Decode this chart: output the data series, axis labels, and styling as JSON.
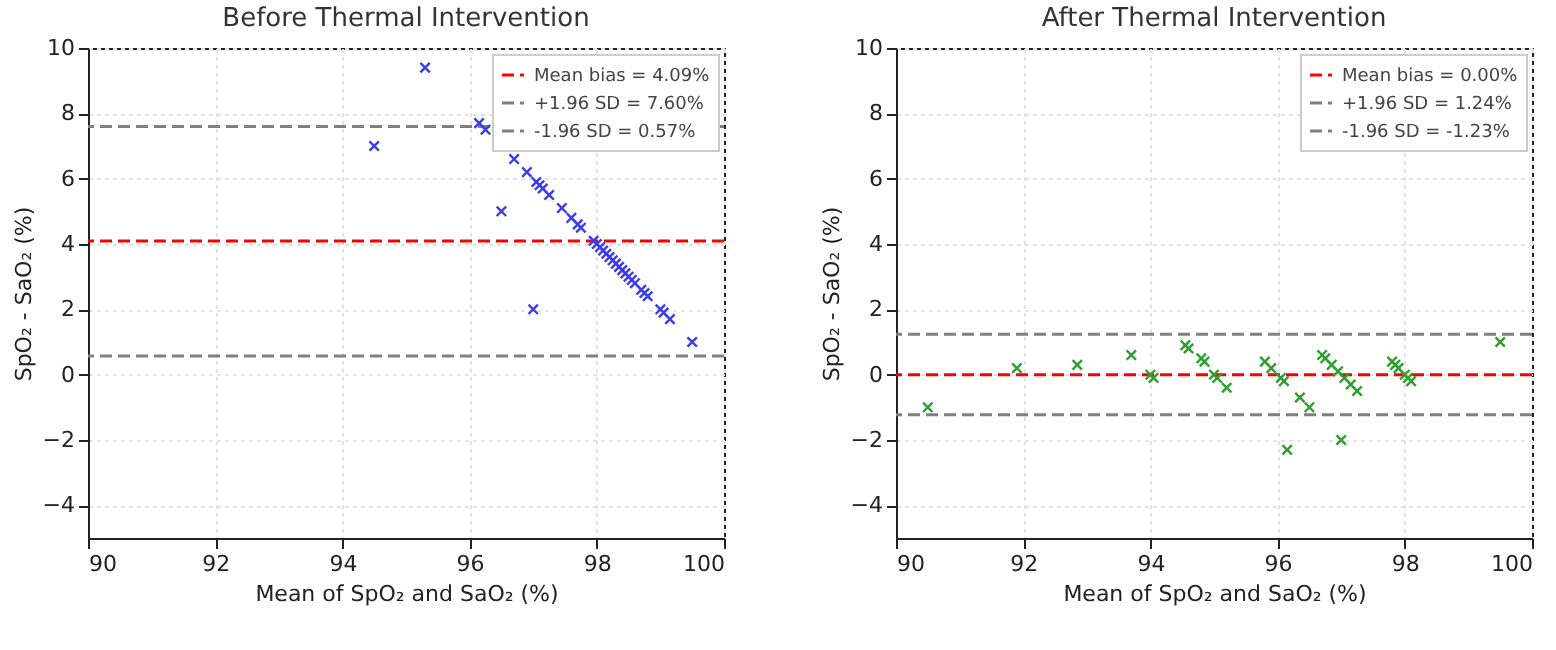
{
  "chart_data": [
    {
      "type": "scatter",
      "title": "Before Thermal Intervention",
      "xlabel": "Mean of SpO₂ and SaO₂ (%)",
      "ylabel": "SpO₂ - SaO₂ (%)",
      "x": [
        94.5,
        95.3,
        96.15,
        96.25,
        96.5,
        96.7,
        96.9,
        97.0,
        97.05,
        97.1,
        97.15,
        97.25,
        97.45,
        97.6,
        97.7,
        97.75,
        97.95,
        98.0,
        98.05,
        98.1,
        98.15,
        98.2,
        98.25,
        98.3,
        98.35,
        98.4,
        98.45,
        98.5,
        98.55,
        98.6,
        98.7,
        98.75,
        98.8,
        99.0,
        99.05,
        99.15,
        99.5
      ],
      "series": [
        {
          "color": "#3b3bf5",
          "values": [
            7.0,
            9.4,
            7.7,
            7.5,
            5.0,
            6.6,
            6.2,
            2.0,
            5.9,
            5.8,
            5.7,
            5.5,
            5.1,
            4.8,
            4.6,
            4.5,
            4.1,
            4.0,
            3.9,
            3.8,
            3.7,
            3.6,
            3.5,
            3.4,
            3.3,
            3.2,
            3.1,
            3.0,
            2.9,
            2.8,
            2.6,
            2.5,
            2.4,
            2.0,
            1.9,
            1.7,
            1.0
          ]
        }
      ],
      "ref_lines": [
        {
          "axis": "y",
          "value": 4.09,
          "label": "Mean bias = 4.09%",
          "color": "#ff0000",
          "line_style": "dashed"
        },
        {
          "axis": "y",
          "value": 7.6,
          "label": "+1.96 SD = 7.60%",
          "color": "#808080",
          "line_style": "dashed"
        },
        {
          "axis": "y",
          "value": 0.57,
          "label": "-1.96 SD = 0.57%",
          "color": "#808080",
          "line_style": "dashed"
        }
      ],
      "xlim": [
        90,
        100
      ],
      "xticks": [
        90,
        92,
        94,
        96,
        98,
        100
      ],
      "ylim": [
        -5,
        10
      ],
      "yticks": [
        -4,
        -2,
        0,
        2,
        4,
        6,
        8,
        10
      ],
      "grid": true,
      "legend": "top right",
      "marker": "cross"
    },
    {
      "type": "scatter",
      "title": "After Thermal Intervention",
      "xlabel": "Mean of SpO₂ and SaO₂ (%)",
      "ylabel": "SpO₂ - SaO₂ (%)",
      "x": [
        90.5,
        91.9,
        92.85,
        93.7,
        94.0,
        94.05,
        94.55,
        94.6,
        94.8,
        94.85,
        95.0,
        95.05,
        95.2,
        95.8,
        95.9,
        96.05,
        96.1,
        96.15,
        96.35,
        96.5,
        96.7,
        96.75,
        96.85,
        96.95,
        97.0,
        97.05,
        97.15,
        97.25,
        97.8,
        97.85,
        97.9,
        98.0,
        98.05,
        98.1,
        99.5
      ],
      "series": [
        {
          "color": "#2ca02c",
          "values": [
            -1.0,
            0.2,
            0.3,
            0.6,
            0.0,
            -0.1,
            0.9,
            0.8,
            0.5,
            0.4,
            0.0,
            -0.1,
            -0.4,
            0.4,
            0.2,
            -0.1,
            -0.2,
            -2.3,
            -0.7,
            -1.0,
            0.6,
            0.5,
            0.3,
            0.1,
            -2.0,
            -0.1,
            -0.3,
            -0.5,
            0.4,
            0.3,
            0.2,
            0.0,
            -0.1,
            -0.2,
            1.0
          ]
        }
      ],
      "ref_lines": [
        {
          "axis": "y",
          "value": 0.0,
          "label": "Mean bias = 0.00%",
          "color": "#ff0000",
          "line_style": "dashed"
        },
        {
          "axis": "y",
          "value": 1.24,
          "label": "+1.96 SD = 1.24%",
          "color": "#808080",
          "line_style": "dashed"
        },
        {
          "axis": "y",
          "value": -1.23,
          "label": "-1.96 SD = -1.23%",
          "color": "#808080",
          "line_style": "dashed"
        }
      ],
      "xlim": [
        90,
        100
      ],
      "xticks": [
        90,
        92,
        94,
        96,
        98,
        100
      ],
      "ylim": [
        -5,
        10
      ],
      "yticks": [
        -4,
        -2,
        0,
        2,
        4,
        6,
        8,
        10
      ],
      "grid": true,
      "legend": "top right",
      "marker": "cross"
    }
  ]
}
